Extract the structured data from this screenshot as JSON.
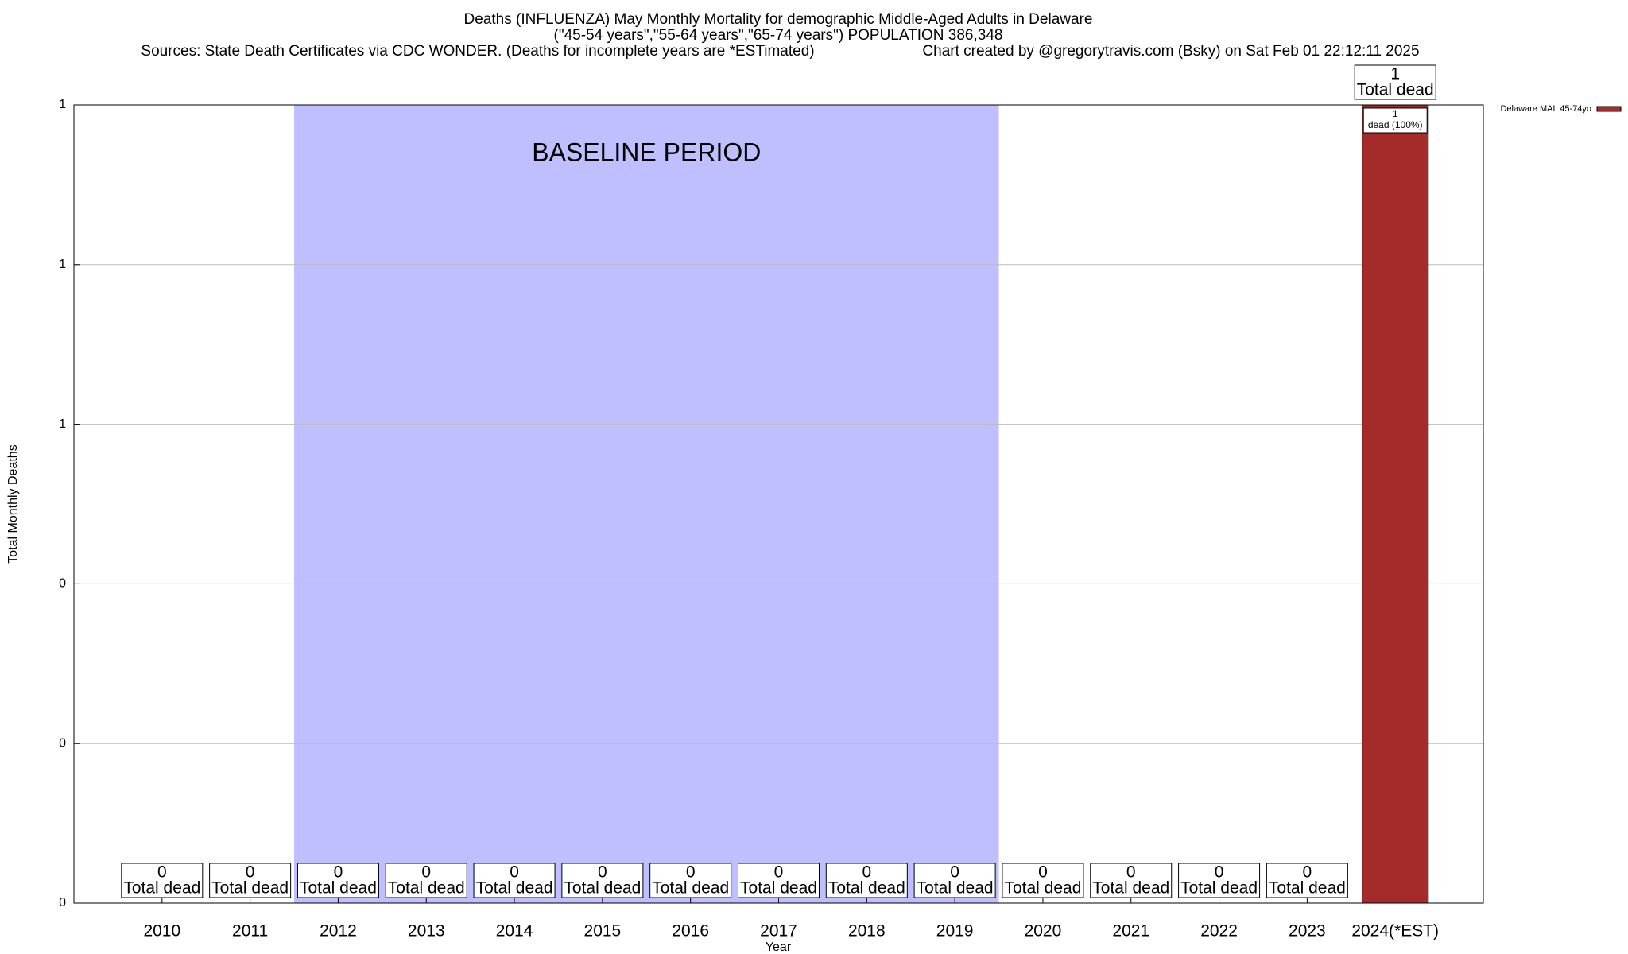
{
  "chart_data": {
    "type": "bar",
    "title_lines": [
      "Deaths (INFLUENZA) May Monthly Mortality for demographic Middle-Aged Adults in Delaware",
      "(\"45-54 years\",\"55-64 years\",\"65-74 years\") POPULATION 386,348"
    ],
    "sources": "Sources: State Death Certificates via CDC WONDER. (Deaths for incomplete years are *ESTimated)",
    "credit": "Chart created by @gregorytravis.com (Bsky) on Sat Feb 01 22:12:11 2025",
    "x_label": "Year",
    "y_label": "Total Monthly Deaths",
    "categories": [
      "2010",
      "2011",
      "2012",
      "2013",
      "2014",
      "2015",
      "2016",
      "2017",
      "2018",
      "2019",
      "2020",
      "2021",
      "2022",
      "2023",
      "2024(*EST)"
    ],
    "series": [
      {
        "name": "Delaware MAL 45-74yo",
        "color": "#a52a2a",
        "values": [
          0,
          0,
          0,
          0,
          0,
          0,
          0,
          0,
          0,
          0,
          0,
          0,
          0,
          0,
          1
        ]
      }
    ],
    "value_caption": "Total dead",
    "inner_caption": "dead (100%)",
    "baseline": {
      "label": "BASELINE PERIOD",
      "start": "2012",
      "end": "2019",
      "color": "#bfbfff"
    },
    "ylim": [
      0,
      1
    ],
    "yticks": [
      0,
      {
        "value": 0.2,
        "label": "0"
      },
      {
        "value": 0.4,
        "label": "0"
      },
      {
        "value": 0.6,
        "label": "1"
      },
      {
        "value": 0.8,
        "label": "1"
      },
      1
    ],
    "grid": true,
    "legend": "top-right"
  }
}
